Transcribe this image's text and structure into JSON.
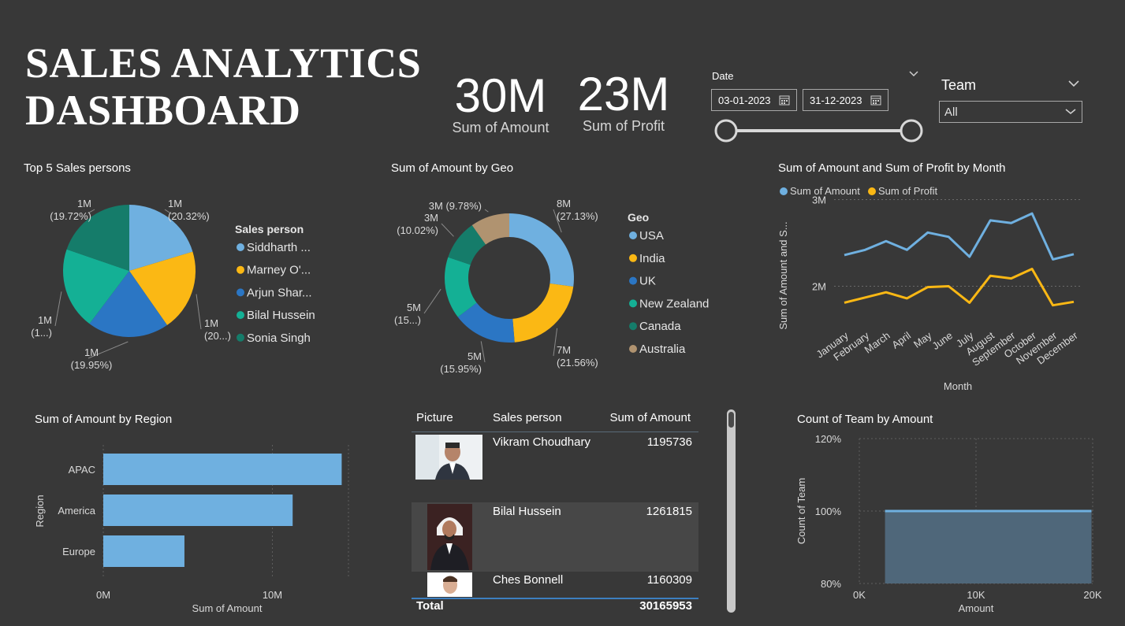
{
  "header": {
    "title_line1": "SALES ANALYTICS",
    "title_line2": "DASHBOARD"
  },
  "kpis": [
    {
      "value": "30M",
      "label": "Sum of Amount"
    },
    {
      "value": "23M",
      "label": "Sum of Profit"
    }
  ],
  "date_filter": {
    "label": "Date",
    "start": "03-01-2023",
    "end": "31-12-2023"
  },
  "team_filter": {
    "label": "Team",
    "selected": "All"
  },
  "colors": {
    "background": "#383838",
    "usa": "#6FB0E0",
    "india": "#FBB814",
    "uk": "#2B76C4",
    "newzealand": "#14B095",
    "canada": "#157C6A",
    "australia": "#B09370"
  },
  "top5": {
    "title": "Top 5 Sales persons",
    "legend_title": "Sales person",
    "chart_data": {
      "type": "pie",
      "slices": [
        {
          "name": "Siddharth ...",
          "percent": 20.32,
          "label_value": "1M",
          "label_pct": "(20.32%)",
          "color": "#6FB0E0"
        },
        {
          "name": "Marney O'...",
          "percent": 20.0,
          "label_value": "1M",
          "label_pct": "(20...)",
          "color": "#FBB814"
        },
        {
          "name": "Arjun Shar...",
          "percent": 19.95,
          "label_value": "1M",
          "label_pct": "(19.95%)",
          "color": "#2B76C4"
        },
        {
          "name": "Bilal Hussein",
          "percent": 20.01,
          "label_value": "1M",
          "label_pct": "(1...)",
          "color": "#14B095"
        },
        {
          "name": "Sonia Singh",
          "percent": 19.72,
          "label_value": "1M",
          "label_pct": "(19.72%)",
          "color": "#157C6A"
        }
      ]
    }
  },
  "geo": {
    "title": "Sum of Amount by Geo",
    "legend_title": "Geo",
    "chart_data": {
      "type": "pie",
      "donut": true,
      "slices": [
        {
          "name": "USA",
          "percent": 27.13,
          "label_value": "8M",
          "label_pct": "(27.13%)",
          "color": "#6FB0E0"
        },
        {
          "name": "India",
          "percent": 21.56,
          "label_value": "7M",
          "label_pct": "(21.56%)",
          "color": "#FBB814"
        },
        {
          "name": "UK",
          "percent": 15.95,
          "label_value": "5M",
          "label_pct": "(15.95%)",
          "color": "#2B76C4"
        },
        {
          "name": "New Zealand",
          "percent": 15.56,
          "label_value": "5M",
          "label_pct": "(15...)",
          "color": "#14B095"
        },
        {
          "name": "Canada",
          "percent": 10.02,
          "label_value": "3M",
          "label_pct": "(10.02%)",
          "color": "#157C6A"
        },
        {
          "name": "Australia",
          "percent": 9.78,
          "label_value": "3M",
          "label_pct": "(9.78%)",
          "color": "#B09370"
        }
      ]
    }
  },
  "monthly": {
    "title": "Sum of Amount and Sum of Profit by Month",
    "chart_data": {
      "type": "line",
      "xlabel": "Month",
      "ylabel": "Sum of Amount and S...",
      "x": [
        "January",
        "February",
        "March",
        "April",
        "May",
        "June",
        "July",
        "August",
        "September",
        "October",
        "November",
        "December"
      ],
      "yticks": [
        "2M",
        "3M"
      ],
      "ylim": [
        1.55,
        3.05
      ],
      "series": [
        {
          "name": "Sum of Amount",
          "color": "#6FB0E0",
          "values": [
            2.36,
            2.42,
            2.52,
            2.42,
            2.62,
            2.57,
            2.34,
            2.76,
            2.73,
            2.84,
            2.31,
            2.37
          ]
        },
        {
          "name": "Sum of Profit",
          "color": "#FBB814",
          "values": [
            1.81,
            1.87,
            1.93,
            1.86,
            1.99,
            2.0,
            1.81,
            2.12,
            2.09,
            2.2,
            1.78,
            1.82
          ]
        }
      ]
    }
  },
  "region": {
    "title": "Sum of Amount by Region",
    "chart_data": {
      "type": "bar",
      "orientation": "horizontal",
      "categories": [
        "APAC",
        "America",
        "Europe"
      ],
      "values": [
        14.1,
        11.2,
        4.8
      ],
      "xlim": [
        0,
        14.5
      ],
      "xticks": [
        "0M",
        "10M"
      ],
      "xlabel": "Sum of Amount",
      "ylabel": "Region",
      "color": "#6FB0E0"
    }
  },
  "table": {
    "headers": [
      "Picture",
      "Sales person",
      "Sum of Amount"
    ],
    "rows": [
      {
        "name": "Vikram Choudhary",
        "amount": "1195736"
      },
      {
        "name": "Bilal Hussein",
        "amount": "1261815"
      },
      {
        "name": "Ches Bonnell",
        "amount": "1160309"
      }
    ],
    "total_label": "Total",
    "total_value": "30165953"
  },
  "team_count": {
    "title": "Count of Team by Amount",
    "chart_data": {
      "type": "area",
      "xlabel": "Amount",
      "ylabel": "Count of Team",
      "xticks": [
        "0K",
        "10K",
        "20K"
      ],
      "yticks": [
        "120%",
        "100%",
        "80%"
      ],
      "x_range": [
        2.2,
        19.9
      ],
      "y": 100,
      "ylim": [
        80,
        120
      ],
      "color": "#6FB0E0"
    }
  }
}
